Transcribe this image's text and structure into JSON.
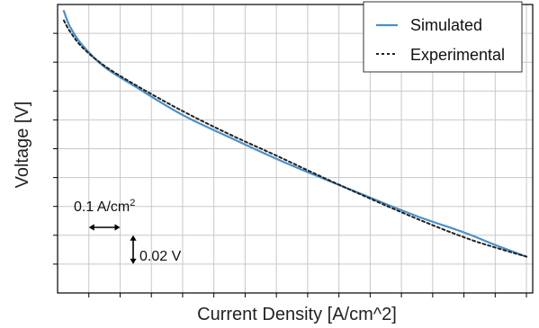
{
  "chart_data": {
    "type": "line",
    "xlabel": "Current Density [A/cm^2]",
    "ylabel": "Voltage [V]",
    "x_unit": "A/cm^2",
    "y_unit": "V",
    "grid": true,
    "legend_position": "top-right",
    "xlim": [
      0,
      1.52
    ],
    "ylim": [
      0,
      0.2
    ],
    "x_grid_step": 0.1,
    "y_grid_step": 0.02,
    "series": [
      {
        "name": "Simulated",
        "style": "solid",
        "color": "#4a90c8",
        "x": [
          0.02,
          0.04,
          0.08,
          0.15,
          0.25,
          0.4,
          0.55,
          0.7,
          0.85,
          1.0,
          1.15,
          1.3,
          1.4,
          1.5
        ],
        "y": [
          0.1956,
          0.1845,
          0.1716,
          0.1567,
          0.1429,
          0.1234,
          0.1079,
          0.093,
          0.0793,
          0.0661,
          0.0532,
          0.042,
          0.0333,
          0.0252
        ]
      },
      {
        "name": "Experimental",
        "style": "dashed",
        "color": "#222222",
        "x": [
          0.02,
          0.04,
          0.08,
          0.15,
          0.25,
          0.4,
          0.55,
          0.7,
          0.85,
          1.0,
          1.15,
          1.3,
          1.4,
          1.5
        ],
        "y": [
          0.189,
          0.1812,
          0.1701,
          0.1575,
          0.1441,
          0.1261,
          0.11,
          0.0952,
          0.08,
          0.0654,
          0.0514,
          0.0386,
          0.0315,
          0.0252
        ]
      }
    ],
    "annotations": [
      {
        "label": "0.1 A/cm",
        "superscript": "2",
        "kind": "x-scale"
      },
      {
        "label": "0.02 V",
        "kind": "y-scale"
      }
    ]
  }
}
